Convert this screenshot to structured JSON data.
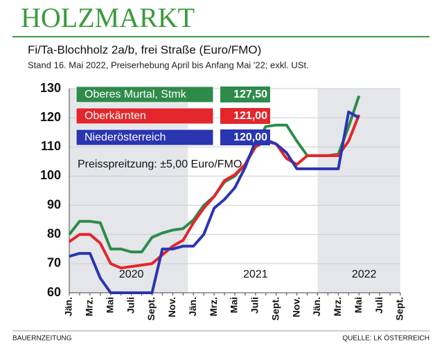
{
  "chart_data": {
    "type": "line",
    "title": "HOLZMARKT",
    "subtitle": "Fi/Ta-Blochholz 2a/b, frei Straße (Euro/FMO)",
    "note": "Stand 16. Mai 2022, Preiserhebung April bis Anfang Mai '22; exkl. USt.",
    "annotation": "Preisspreitzung: ±5,00 Euro/FMO",
    "year_labels": [
      "2020",
      "2021",
      "2022"
    ],
    "source_left": "BAUERNZEITUNG",
    "source_right": "QUELLE: LK ÖSTERREICH",
    "categories": [
      "Jän.",
      null,
      "Mrz.",
      null,
      "Mai",
      null,
      "Juli",
      null,
      "Sept.",
      null,
      "Nov.",
      null,
      "Jän.",
      null,
      "Mrz.",
      null,
      "Mai",
      null,
      "Juli",
      null,
      "Sept.",
      null,
      "Nov.",
      null,
      "Jän.",
      null,
      "Mrz.",
      null,
      "Mai",
      null,
      "Juli",
      null,
      "Sept."
    ],
    "ylim": [
      60,
      130
    ],
    "yticks": [
      60,
      70,
      80,
      90,
      100,
      110,
      120,
      130
    ],
    "grid": true,
    "series": [
      {
        "name": "Oberes Murtal, Stmk",
        "color": "#2e8b4a",
        "values": [
          80,
          84.5,
          84.5,
          84,
          75,
          75,
          74,
          74,
          79,
          80.5,
          81.5,
          82,
          85,
          90,
          93,
          98,
          100,
          104,
          111,
          117,
          117.5,
          117.5,
          112,
          107,
          107,
          107,
          107.5,
          117,
          127.5,
          null,
          null,
          null,
          null
        ],
        "value_labels": [
          null,
          null,
          null,
          null,
          null,
          null,
          null,
          null,
          null,
          null,
          null,
          null,
          null,
          null,
          null,
          null,
          null,
          null,
          null,
          null,
          null,
          null,
          null,
          null,
          null,
          null,
          null,
          null,
          "127,50",
          null,
          null,
          null,
          null
        ]
      },
      {
        "name": "Oberkärnten",
        "color": "#e3262b",
        "values": [
          77.5,
          80,
          80,
          77,
          70,
          68.5,
          69,
          69.5,
          70,
          73,
          76,
          78,
          84,
          89,
          93,
          98.5,
          100.5,
          104,
          110,
          112,
          111,
          106,
          104,
          107,
          107,
          107,
          107,
          112,
          121,
          null,
          null,
          null,
          null
        ],
        "value_labels": [
          null,
          null,
          null,
          null,
          null,
          null,
          null,
          null,
          null,
          null,
          null,
          null,
          null,
          null,
          null,
          null,
          null,
          null,
          null,
          null,
          null,
          null,
          null,
          null,
          null,
          null,
          null,
          null,
          "121,00",
          null,
          null,
          null,
          null
        ]
      },
      {
        "name": "Niederösterreich",
        "color": "#2a35b0",
        "values": [
          72.5,
          73.5,
          73.5,
          65,
          60,
          60,
          60,
          60,
          60,
          75,
          75,
          76,
          76,
          80,
          89,
          92,
          96,
          103,
          112,
          112.5,
          111,
          108,
          102.5,
          102.5,
          102.5,
          102.5,
          102.5,
          122,
          120,
          null,
          null,
          null,
          null
        ],
        "value_labels": [
          null,
          null,
          null,
          null,
          null,
          null,
          null,
          null,
          null,
          null,
          null,
          null,
          null,
          null,
          null,
          null,
          null,
          null,
          null,
          null,
          null,
          null,
          null,
          null,
          null,
          null,
          null,
          null,
          "120,00",
          null,
          null,
          null,
          null
        ]
      }
    ]
  }
}
